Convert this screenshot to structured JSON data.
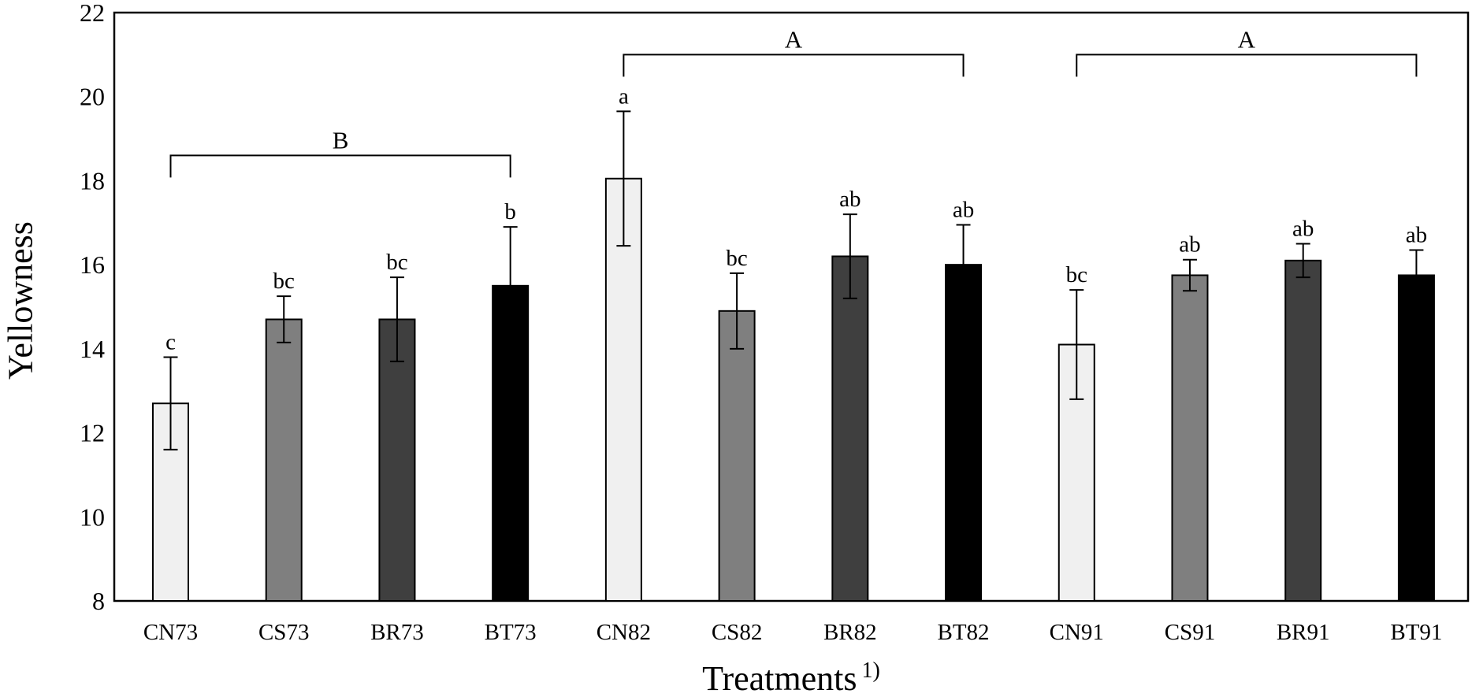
{
  "chart_data": {
    "type": "bar",
    "title": "",
    "ylabel": "Yellowness",
    "xlabel": "Treatments",
    "xlabel_superscript": "1)",
    "ylim": [
      8,
      22
    ],
    "yticks": [
      8,
      10,
      12,
      14,
      16,
      18,
      20,
      22
    ],
    "grid": false,
    "legend": "none",
    "axis_color": "#000000",
    "categories": [
      "CN73",
      "CS73",
      "BR73",
      "BT73",
      "CN82",
      "CS82",
      "BR82",
      "BT82",
      "CN91",
      "CS91",
      "BR91",
      "BT91"
    ],
    "values": [
      12.7,
      14.7,
      14.7,
      15.5,
      18.05,
      14.9,
      16.2,
      16.0,
      14.1,
      15.75,
      16.1,
      15.75
    ],
    "error_bars": [
      1.1,
      0.55,
      1.0,
      1.4,
      1.6,
      0.9,
      1.0,
      0.95,
      1.3,
      0.37,
      0.4,
      0.6
    ],
    "significance_letters": [
      "c",
      "bc",
      "bc",
      "b",
      "a",
      "bc",
      "ab",
      "ab",
      "bc",
      "ab",
      "ab",
      "ab"
    ],
    "bar_fill_palette": [
      "#f0f0f0",
      "#7f7f7f",
      "#3f3f3f",
      "#000000"
    ],
    "bar_border_color": "#000000",
    "error_bar_color": "#000000",
    "group_brackets": [
      {
        "label": "B",
        "from_index": 0,
        "to_index": 3,
        "y_value": 18.6
      },
      {
        "label": "A",
        "from_index": 4,
        "to_index": 7,
        "y_value": 21.0
      },
      {
        "label": "A",
        "from_index": 8,
        "to_index": 11,
        "y_value": 21.0
      }
    ]
  }
}
